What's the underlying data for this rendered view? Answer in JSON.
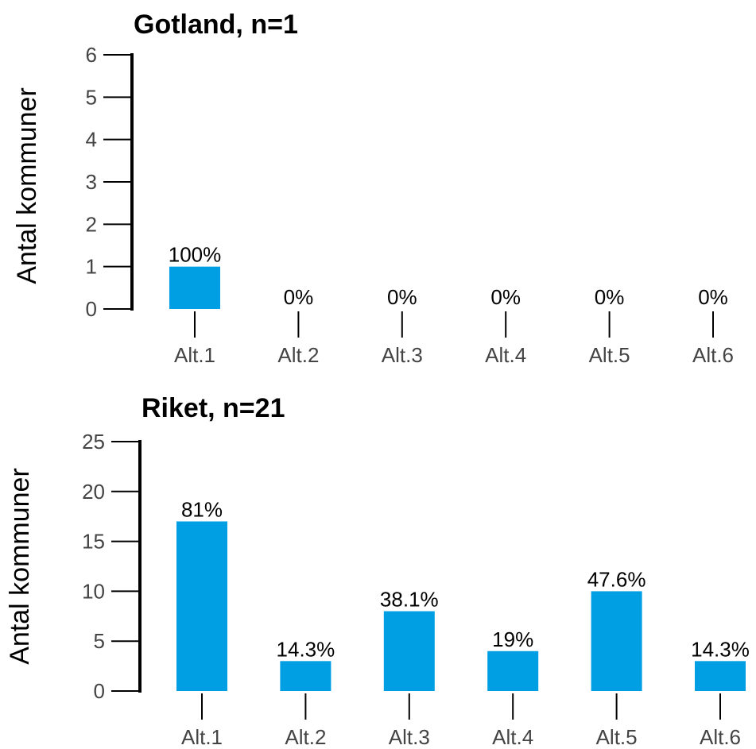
{
  "colors": {
    "bar": "#009fe3",
    "axis": "#000000",
    "tick_text": "#444444"
  },
  "chart_data": [
    {
      "type": "bar",
      "title": "Gotland, n=1",
      "ylabel": "Antal kommuner",
      "xlabel": "",
      "ylim": [
        0,
        6
      ],
      "yticks": [
        0,
        1,
        2,
        3,
        4,
        5,
        6
      ],
      "categories": [
        "Alt.1",
        "Alt.2",
        "Alt.3",
        "Alt.4",
        "Alt.5",
        "Alt.6"
      ],
      "values": [
        1,
        0,
        0,
        0,
        0,
        0
      ],
      "labels": [
        "100%",
        "0%",
        "0%",
        "0%",
        "0%",
        "0%"
      ],
      "grid": false,
      "legend": "none"
    },
    {
      "type": "bar",
      "title": "Riket, n=21",
      "ylabel": "Antal kommuner",
      "xlabel": "",
      "ylim": [
        0,
        25
      ],
      "yticks": [
        0,
        5,
        10,
        15,
        20,
        25
      ],
      "categories": [
        "Alt.1",
        "Alt.2",
        "Alt.3",
        "Alt.4",
        "Alt.5",
        "Alt.6"
      ],
      "values": [
        17,
        3,
        8,
        4,
        10,
        3
      ],
      "labels": [
        "81%",
        "14.3%",
        "38.1%",
        "19%",
        "47.6%",
        "14.3%"
      ],
      "grid": false,
      "legend": "none"
    }
  ]
}
